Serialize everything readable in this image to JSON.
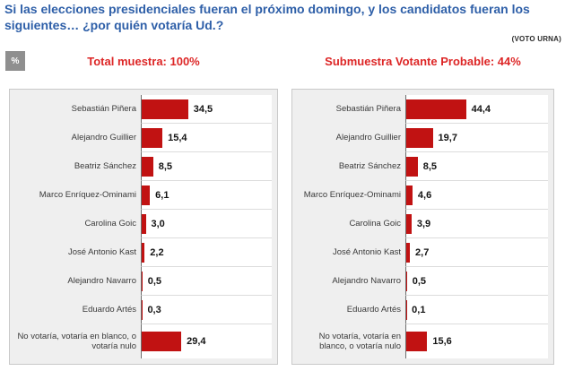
{
  "header": {
    "title": "Si las elecciones presidenciales fueran el próximo domingo, y los candidatos fueran los siguientes… ¿por quién votaría Ud.?",
    "note": "(VOTO URNA)",
    "unit_badge": "%"
  },
  "colors": {
    "bar": "#c11212",
    "title_text": "#2e5fa8",
    "subtitle_text": "#dd2626",
    "panel_background": "#efefef",
    "panel_border": "#c9c9c9"
  },
  "chart_data": [
    {
      "type": "bar",
      "orientation": "horizontal",
      "title": "Total muestra: 100%",
      "unit": "%",
      "categories": [
        "Sebastián Piñera",
        "Alejandro Guillier",
        "Beatriz Sánchez",
        "Marco Enríquez-Ominami",
        "Carolina Goic",
        "José Antonio Kast",
        "Alejandro Navarro",
        "Eduardo Artés",
        "No votaría, votaría en blanco, o votaría nulo"
      ],
      "values": [
        34.5,
        15.4,
        8.5,
        6.1,
        3.0,
        2.2,
        0.5,
        0.3,
        29.4
      ],
      "value_labels": [
        "34,5",
        "15,4",
        "8,5",
        "6,1",
        "3,0",
        "2,2",
        "0,5",
        "0,3",
        "29,4"
      ],
      "xlim": [
        0,
        100
      ],
      "grid": false,
      "legend": false
    },
    {
      "type": "bar",
      "orientation": "horizontal",
      "title": "Submuestra Votante Probable: 44%",
      "unit": "%",
      "categories": [
        "Sebastián Piñera",
        "Alejandro Guillier",
        "Beatriz Sánchez",
        "Marco Enríquez-Ominami",
        "Carolina Goic",
        "José Antonio Kast",
        "Alejandro Navarro",
        "Eduardo Artés",
        "No votaría, votaría en blanco, o votaría nulo"
      ],
      "values": [
        44.4,
        19.7,
        8.5,
        4.6,
        3.9,
        2.7,
        0.5,
        0.1,
        15.6
      ],
      "value_labels": [
        "44,4",
        "19,7",
        "8,5",
        "4,6",
        "3,9",
        "2,7",
        "0,5",
        "0,1",
        "15,6"
      ],
      "xlim": [
        0,
        100
      ],
      "grid": false,
      "legend": false
    }
  ]
}
